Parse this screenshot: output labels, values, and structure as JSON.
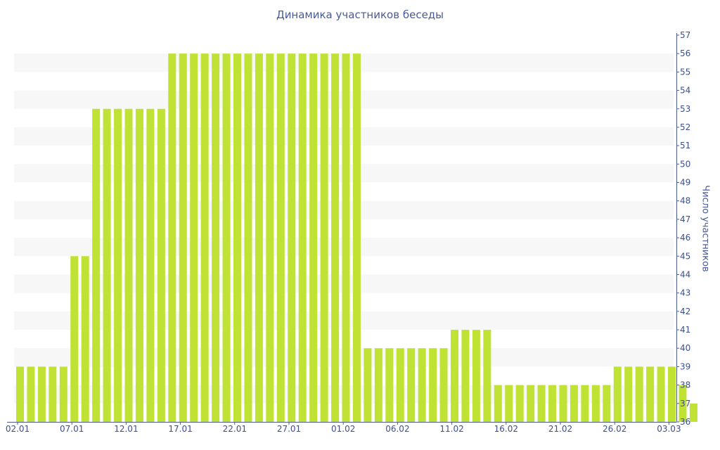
{
  "chart_data": {
    "type": "bar",
    "title": "Динамика участников беседы",
    "xlabel": "",
    "ylabel": "Число участников",
    "ylim": [
      36,
      57
    ],
    "y_axis_position": "right",
    "grid": "alternating horizontal bands",
    "x_tick_labels": [
      "02.01",
      "07.01",
      "12.01",
      "17.01",
      "22.01",
      "27.01",
      "01.02",
      "06.02",
      "11.02",
      "16.02",
      "21.02",
      "26.02",
      "03.03"
    ],
    "y_tick_labels": [
      "36",
      "37",
      "38",
      "39",
      "40",
      "41",
      "42",
      "43",
      "44",
      "45",
      "46",
      "47",
      "48",
      "49",
      "50",
      "51",
      "52",
      "53",
      "54",
      "55",
      "56",
      "57"
    ],
    "values": [
      39,
      39,
      39,
      39,
      39,
      45,
      45,
      53,
      53,
      53,
      53,
      53,
      53,
      53,
      56,
      56,
      56,
      56,
      56,
      56,
      56,
      56,
      56,
      56,
      56,
      56,
      56,
      56,
      56,
      56,
      56,
      56,
      40,
      40,
      40,
      40,
      40,
      40,
      40,
      40,
      41,
      41,
      41,
      41,
      38,
      38,
      38,
      38,
      38,
      38,
      38,
      38,
      38,
      38,
      38,
      39,
      39,
      39,
      39,
      39,
      39,
      38,
      37
    ],
    "colors": {
      "bar": "#bfe234",
      "band": "#f7f7f7",
      "axis": "#4a5a95",
      "text": "#3b4f8f"
    }
  }
}
